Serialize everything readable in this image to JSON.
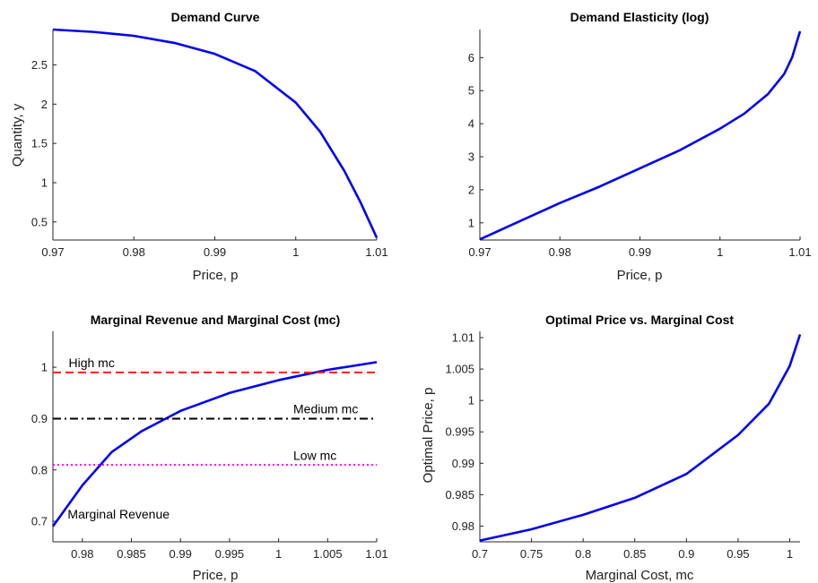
{
  "chart_data": [
    {
      "type": "line",
      "title": "Demand Curve",
      "xlabel": "Price, p",
      "ylabel": "Quantity, y",
      "xlim": [
        0.97,
        1.01
      ],
      "ylim": [
        0.27,
        2.95
      ],
      "xticks": [
        0.97,
        0.98,
        0.99,
        1.0,
        1.01
      ],
      "xtick_labels": [
        "0.97",
        "0.98",
        "0.99",
        "1",
        "1.01"
      ],
      "yticks": [
        0.5,
        1.0,
        1.5,
        2.0,
        2.5
      ],
      "ytick_labels": [
        "0.5",
        "1",
        "1.5",
        "2",
        "2.5"
      ],
      "grid": false,
      "series": [
        {
          "color": "#0000ee",
          "x": [
            0.97,
            0.975,
            0.98,
            0.985,
            0.99,
            0.995,
            1.0,
            1.003,
            1.006,
            1.008,
            1.01
          ],
          "y": [
            2.95,
            2.92,
            2.87,
            2.78,
            2.64,
            2.42,
            2.02,
            1.65,
            1.15,
            0.75,
            0.3
          ]
        }
      ]
    },
    {
      "type": "line",
      "title": "Demand Elasticity (log)",
      "xlabel": "Price, p",
      "ylabel": "",
      "xlim": [
        0.97,
        1.01
      ],
      "ylim": [
        0.48,
        6.85
      ],
      "xticks": [
        0.97,
        0.98,
        0.99,
        1.0,
        1.01
      ],
      "xtick_labels": [
        "0.97",
        "0.98",
        "0.99",
        "1",
        "1.01"
      ],
      "yticks": [
        1,
        2,
        3,
        4,
        5,
        6
      ],
      "ytick_labels": [
        "1",
        "2",
        "3",
        "4",
        "5",
        "6"
      ],
      "grid": false,
      "series": [
        {
          "color": "#0000ee",
          "x": [
            0.97,
            0.975,
            0.98,
            0.985,
            0.99,
            0.995,
            1.0,
            1.003,
            1.006,
            1.008,
            1.009,
            1.01
          ],
          "y": [
            0.5,
            1.05,
            1.6,
            2.1,
            2.65,
            3.2,
            3.85,
            4.3,
            4.9,
            5.5,
            6.0,
            6.8
          ]
        }
      ]
    },
    {
      "type": "line",
      "title": "Marginal Revenue and Marginal Cost (mc)",
      "xlabel": "Price, p",
      "ylabel": "",
      "xlim": [
        0.977,
        1.01
      ],
      "ylim": [
        0.66,
        1.07
      ],
      "xticks": [
        0.98,
        0.985,
        0.99,
        0.995,
        1.0,
        1.005,
        1.01
      ],
      "xtick_labels": [
        "0.98",
        "0.985",
        "0.99",
        "0.995",
        "1",
        "1.005",
        "1.01"
      ],
      "yticks": [
        0.7,
        0.8,
        0.9,
        1.0
      ],
      "ytick_labels": [
        "0.7",
        "0.8",
        "0.9",
        "1"
      ],
      "grid": false,
      "series": [
        {
          "color": "#0000ee",
          "style": "solid",
          "x": [
            0.977,
            0.98,
            0.983,
            0.986,
            0.99,
            0.995,
            1.0,
            1.005,
            1.01
          ],
          "y": [
            0.69,
            0.77,
            0.835,
            0.875,
            0.915,
            0.95,
            0.975,
            0.995,
            1.01
          ]
        },
        {
          "color": "#ff1a1a",
          "style": "dashed",
          "x": [
            0.977,
            1.01
          ],
          "y": [
            0.99,
            0.99
          ]
        },
        {
          "color": "#000000",
          "style": "dashdot",
          "x": [
            0.977,
            1.01
          ],
          "y": [
            0.9,
            0.9
          ]
        },
        {
          "color": "#ff00ff",
          "style": "dotted",
          "x": [
            0.977,
            1.01
          ],
          "y": [
            0.81,
            0.81
          ]
        }
      ],
      "annotations": [
        {
          "text": "High mc",
          "x": 0.9786,
          "y": 1.0
        },
        {
          "text": "Medium mc",
          "x": 1.0015,
          "y": 0.91
        },
        {
          "text": "Low mc",
          "x": 1.0015,
          "y": 0.82
        },
        {
          "text": "Marginal Revenue",
          "x": 0.9785,
          "y": 0.705
        }
      ]
    },
    {
      "type": "line",
      "title": "Optimal Price vs. Marginal Cost",
      "xlabel": "Marginal Cost, mc",
      "ylabel": "Optimal Price, p",
      "xlim": [
        0.7,
        1.01
      ],
      "ylim": [
        0.9775,
        1.011
      ],
      "xticks": [
        0.7,
        0.75,
        0.8,
        0.85,
        0.9,
        0.95,
        1.0
      ],
      "xtick_labels": [
        "0.7",
        "0.75",
        "0.8",
        "0.85",
        "0.9",
        "0.95",
        "1"
      ],
      "yticks": [
        0.98,
        0.985,
        0.99,
        0.995,
        1.0,
        1.005,
        1.01
      ],
      "ytick_labels": [
        "0.98",
        "0.985",
        "0.99",
        "0.995",
        "1",
        "1.005",
        "1.01"
      ],
      "grid": false,
      "series": [
        {
          "color": "#0000ee",
          "x": [
            0.7,
            0.75,
            0.8,
            0.85,
            0.9,
            0.95,
            0.98,
            1.0,
            1.01
          ],
          "y": [
            0.9777,
            0.9795,
            0.9818,
            0.9845,
            0.9883,
            0.9945,
            0.9995,
            1.0055,
            1.0105
          ]
        }
      ]
    }
  ]
}
